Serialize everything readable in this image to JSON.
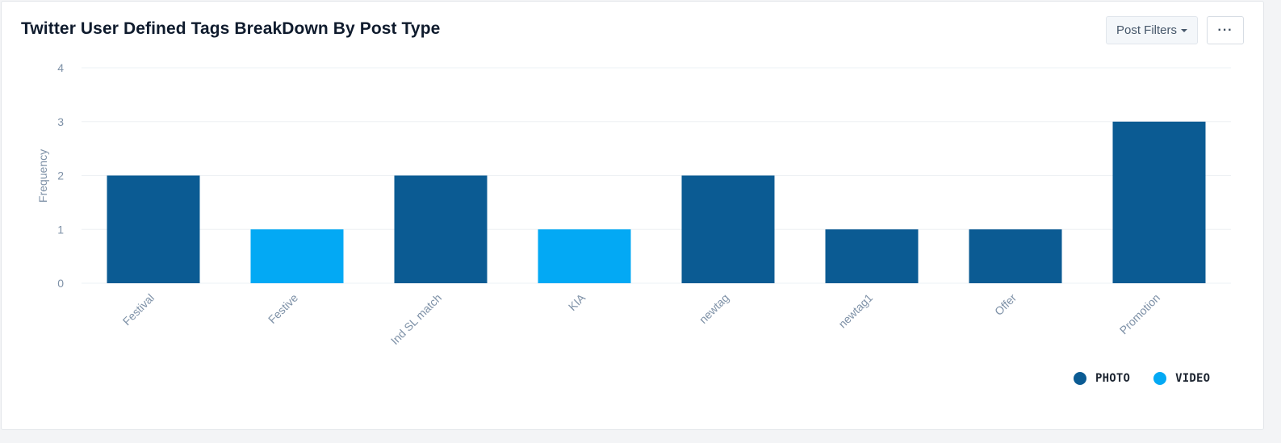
{
  "header": {
    "title": "Twitter User Defined Tags BreakDown By Post Type",
    "filters_label": "Post Filters",
    "more_label": "···"
  },
  "colors": {
    "photo": "#0b5b93",
    "video": "#03a9f4",
    "grid": "#eef1f4",
    "tick_text": "#7e91a7"
  },
  "chart_data": {
    "type": "bar",
    "title": "Twitter User Defined Tags BreakDown By Post Type",
    "xlabel": "",
    "ylabel": "Frequency",
    "ylim": [
      0,
      4
    ],
    "yticks": [
      "0",
      "1",
      "2",
      "3",
      "4"
    ],
    "grid": true,
    "legend_position": "bottom-right",
    "categories": [
      "Festival",
      "Festive",
      "Ind SL match",
      "KIA",
      "newtag",
      "newtag1",
      "Offer",
      "Promotion"
    ],
    "series": [
      {
        "name": "PHOTO",
        "color": "#0b5b93",
        "values": [
          2,
          0,
          2,
          0,
          2,
          1,
          1,
          3
        ]
      },
      {
        "name": "VIDEO",
        "color": "#03a9f4",
        "values": [
          0,
          1,
          0,
          1,
          0,
          0,
          0,
          0
        ]
      }
    ]
  }
}
